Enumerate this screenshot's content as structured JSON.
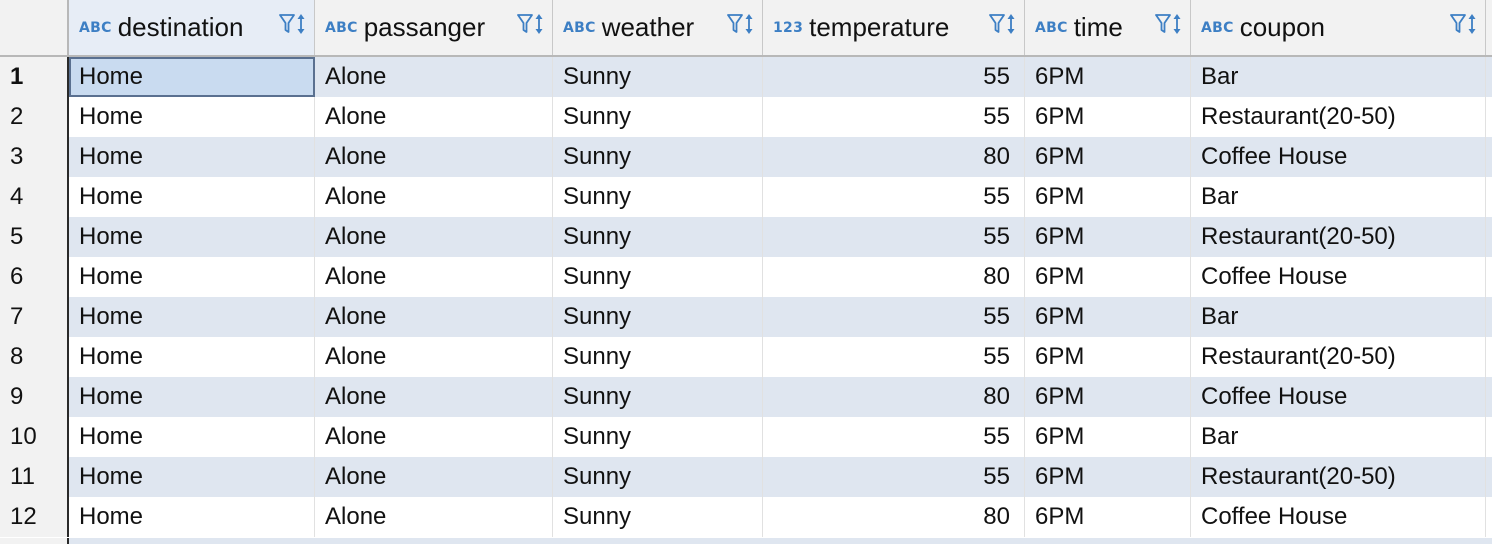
{
  "table": {
    "columns": [
      {
        "type": "ABC",
        "name": "destination",
        "align": "left"
      },
      {
        "type": "ABC",
        "name": "passanger",
        "align": "left"
      },
      {
        "type": "ABC",
        "name": "weather",
        "align": "left"
      },
      {
        "type": "123",
        "name": "temperature",
        "align": "right"
      },
      {
        "type": "ABC",
        "name": "time",
        "align": "left"
      },
      {
        "type": "ABC",
        "name": "coupon",
        "align": "left"
      }
    ],
    "rows": [
      {
        "num": "1",
        "cells": [
          "Home",
          "Alone",
          "Sunny",
          "55",
          "6PM",
          "Bar"
        ]
      },
      {
        "num": "2",
        "cells": [
          "Home",
          "Alone",
          "Sunny",
          "55",
          "6PM",
          "Restaurant(20-50)"
        ]
      },
      {
        "num": "3",
        "cells": [
          "Home",
          "Alone",
          "Sunny",
          "80",
          "6PM",
          "Coffee House"
        ]
      },
      {
        "num": "4",
        "cells": [
          "Home",
          "Alone",
          "Sunny",
          "55",
          "6PM",
          "Bar"
        ]
      },
      {
        "num": "5",
        "cells": [
          "Home",
          "Alone",
          "Sunny",
          "55",
          "6PM",
          "Restaurant(20-50)"
        ]
      },
      {
        "num": "6",
        "cells": [
          "Home",
          "Alone",
          "Sunny",
          "80",
          "6PM",
          "Coffee House"
        ]
      },
      {
        "num": "7",
        "cells": [
          "Home",
          "Alone",
          "Sunny",
          "55",
          "6PM",
          "Bar"
        ]
      },
      {
        "num": "8",
        "cells": [
          "Home",
          "Alone",
          "Sunny",
          "55",
          "6PM",
          "Restaurant(20-50)"
        ]
      },
      {
        "num": "9",
        "cells": [
          "Home",
          "Alone",
          "Sunny",
          "80",
          "6PM",
          "Coffee House"
        ]
      },
      {
        "num": "10",
        "cells": [
          "Home",
          "Alone",
          "Sunny",
          "55",
          "6PM",
          "Bar"
        ]
      },
      {
        "num": "11",
        "cells": [
          "Home",
          "Alone",
          "Sunny",
          "55",
          "6PM",
          "Restaurant(20-50)"
        ]
      },
      {
        "num": "12",
        "cells": [
          "Home",
          "Alone",
          "Sunny",
          "80",
          "6PM",
          "Coffee House"
        ]
      }
    ],
    "selected_row": 1,
    "selected_column": "destination"
  },
  "icons": {
    "column_type": "data-type-icon",
    "filter": "filter-icon",
    "sort": "sort-arrows-icon"
  },
  "colors": {
    "stripe": "#dfe6f0",
    "header_bg": "#f2f2f2",
    "accent": "#3d7fc4",
    "selection": "#c9dbf0"
  }
}
